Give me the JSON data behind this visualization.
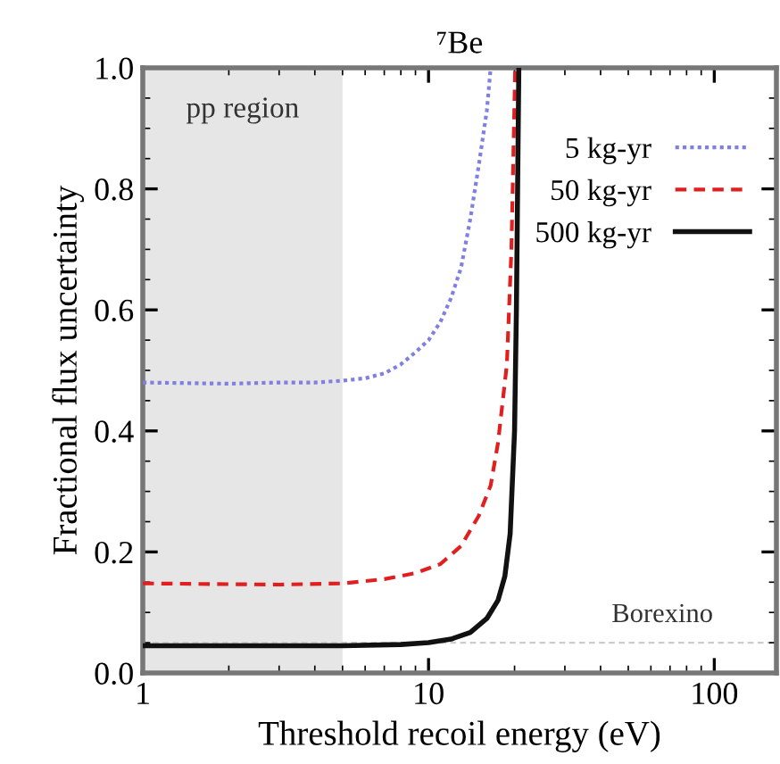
{
  "chart_data": {
    "type": "line",
    "title": "⁷Be",
    "xlabel": "Threshold recoil energy (eV)",
    "ylabel": "Fractional flux uncertainty",
    "log": "x",
    "xlim": [
      1,
      165
    ],
    "xticks": [
      1,
      10,
      100
    ],
    "ylim": [
      0,
      1
    ],
    "yticks": [
      {
        "value": 0,
        "label": "0.0"
      },
      {
        "value": 0.2,
        "label": "0.2"
      },
      {
        "value": 0.4,
        "label": "0.4"
      },
      {
        "value": 0.6,
        "label": "0.6"
      },
      {
        "value": 0.8,
        "label": "0.8"
      },
      {
        "value": 1,
        "label": "1.0"
      }
    ],
    "grid": false,
    "legend": "top right",
    "bands": [
      {
        "axis": "x",
        "from": 1,
        "to": 5,
        "label": "pp region",
        "color": "#e6e6e6"
      }
    ],
    "ref_lines": [
      {
        "axis": "y",
        "value": 0.05,
        "label": "Borexino",
        "color": "#cccccc",
        "line_style": "dashed"
      }
    ],
    "series": [
      {
        "name": "5 kg-yr",
        "color": "#8080e0",
        "line_style": "dotted",
        "x": [
          1,
          2,
          3,
          4,
          5,
          6,
          7,
          8,
          9,
          10,
          11,
          12,
          13,
          14,
          15,
          16,
          16.5
        ],
        "values": [
          0.48,
          0.478,
          0.48,
          0.48,
          0.483,
          0.487,
          0.495,
          0.51,
          0.53,
          0.55,
          0.58,
          0.62,
          0.67,
          0.75,
          0.84,
          0.93,
          1.0
        ]
      },
      {
        "name": "50 kg-yr",
        "color": "#e02020",
        "line_style": "dashed",
        "x": [
          1,
          3,
          5,
          7,
          9,
          11,
          13,
          15,
          16.5,
          17.5,
          18.8,
          19.5,
          20.1
        ],
        "values": [
          0.148,
          0.146,
          0.148,
          0.155,
          0.165,
          0.18,
          0.21,
          0.26,
          0.31,
          0.38,
          0.51,
          0.7,
          1.0
        ]
      },
      {
        "name": "500 kg-yr",
        "color": "#111111",
        "line_style": "solid",
        "x": [
          1,
          5,
          8,
          10,
          12,
          14,
          16,
          17.5,
          18.5,
          19.3,
          20,
          20.3,
          20.7
        ],
        "values": [
          0.045,
          0.045,
          0.047,
          0.05,
          0.056,
          0.067,
          0.09,
          0.12,
          0.16,
          0.23,
          0.4,
          0.6,
          1.0
        ]
      }
    ]
  }
}
